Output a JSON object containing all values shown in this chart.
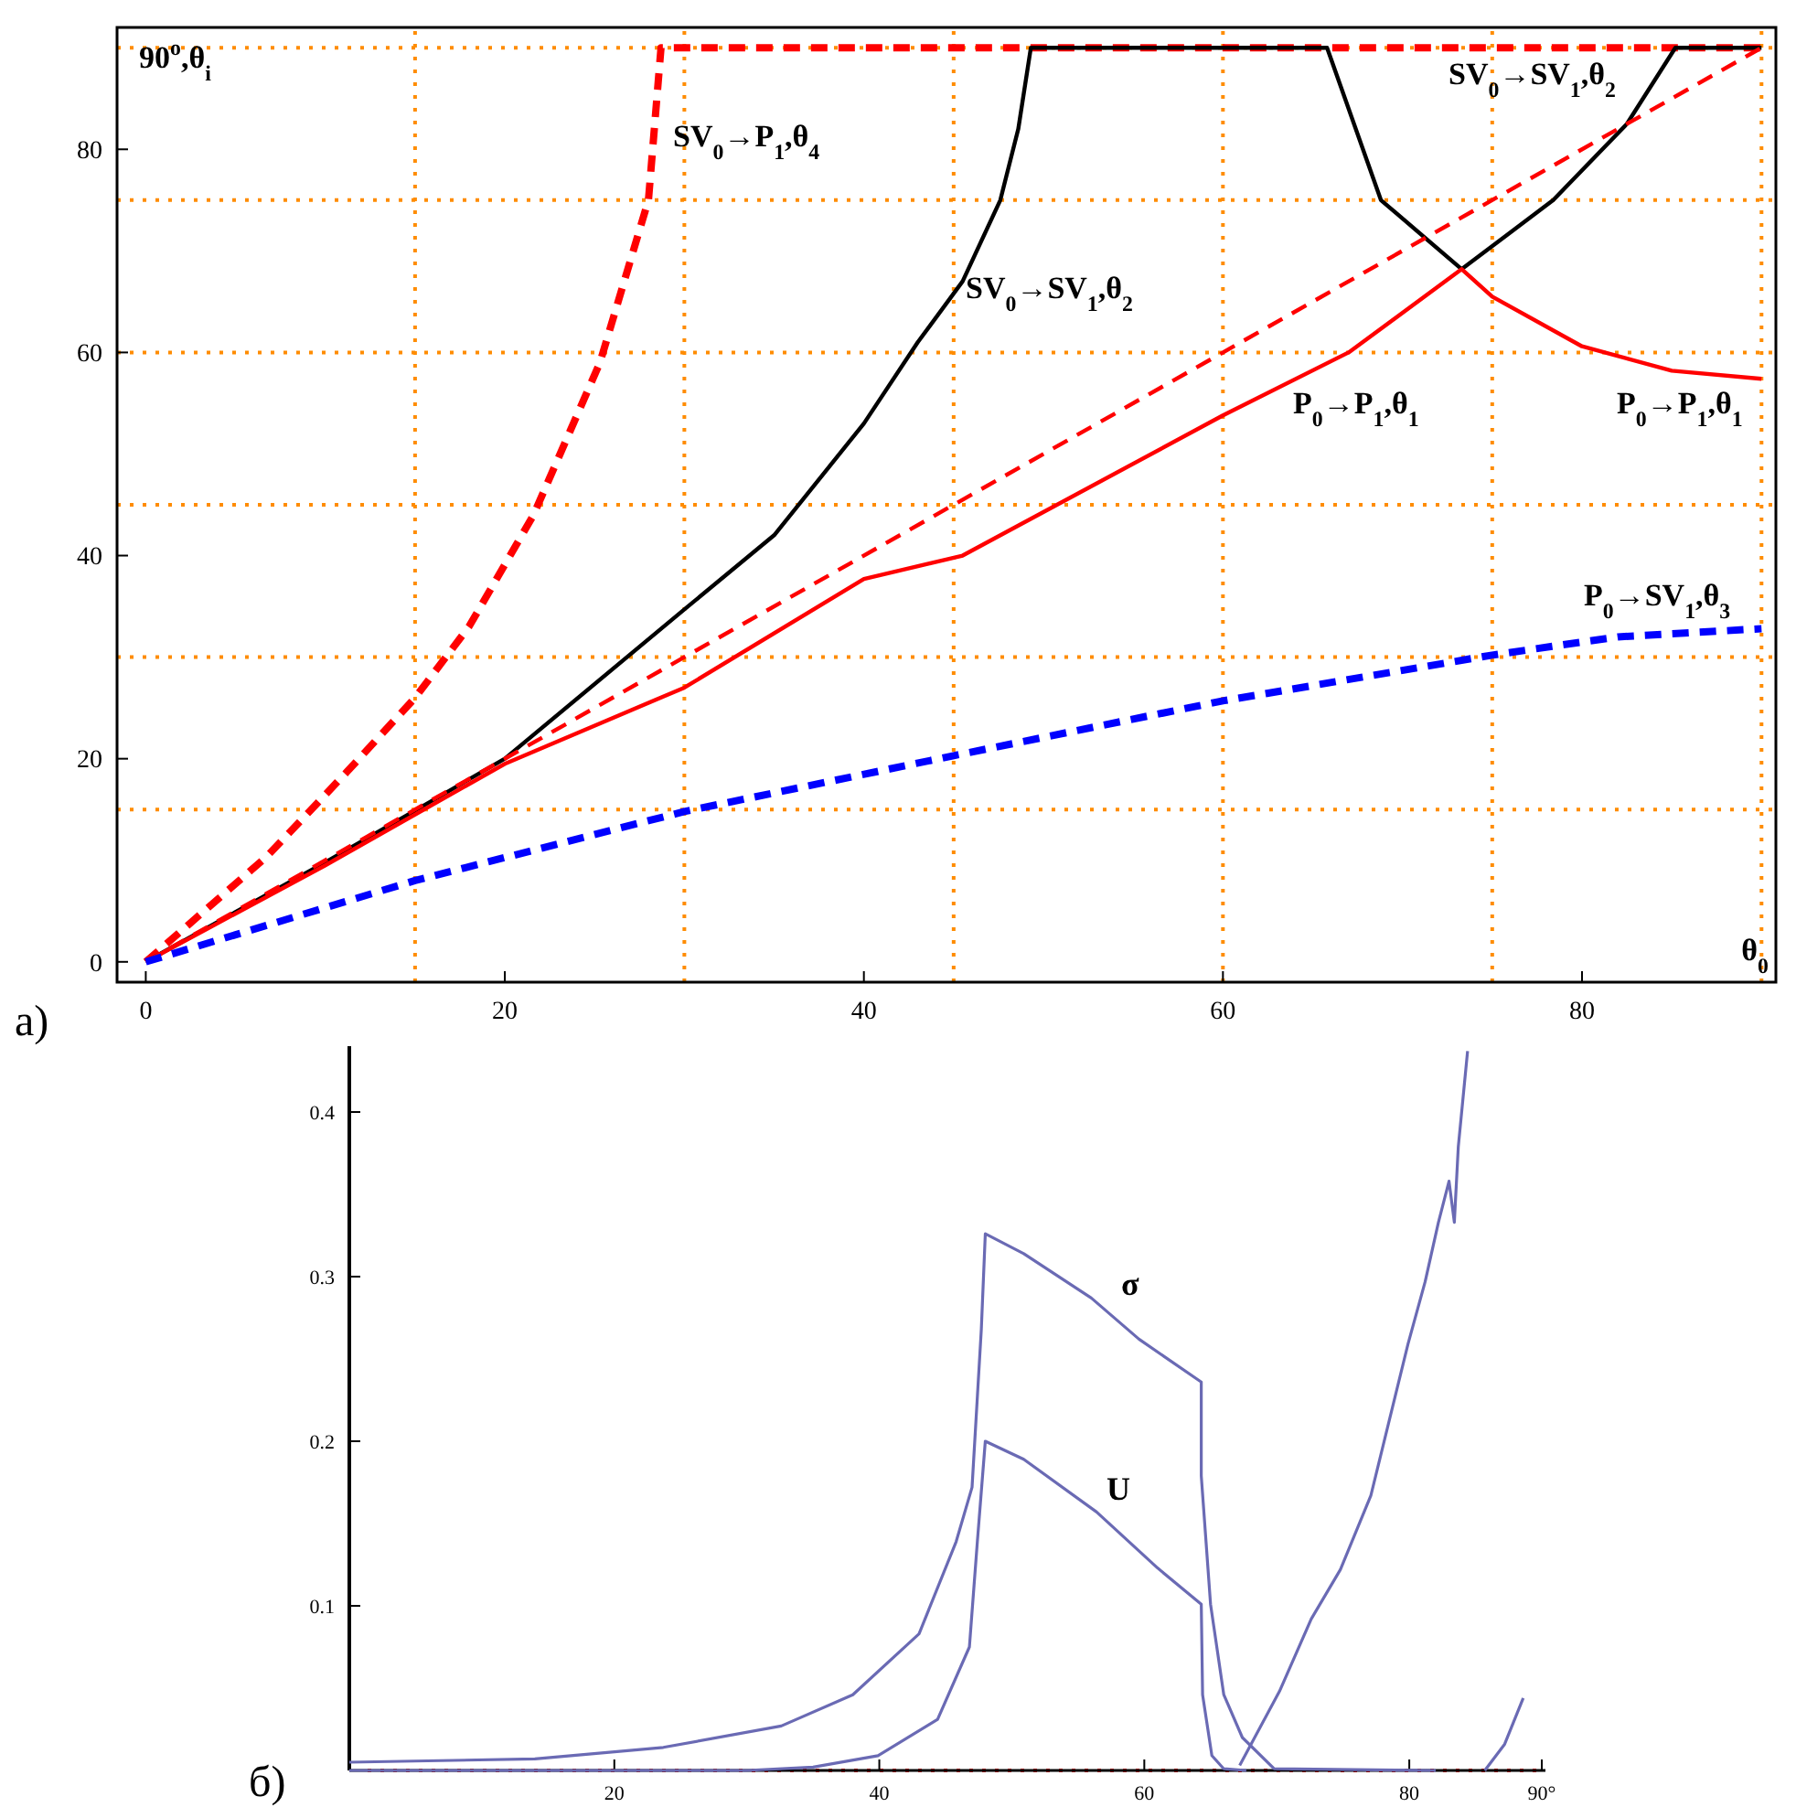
{
  "chart_data": [
    {
      "type": "line",
      "xlabel": "θ$_{0}$",
      "ylabel": "90$^{o}$,θ$_{i}$",
      "xlim": [
        -1.6,
        90.8
      ],
      "ylim": [
        -2,
        92
      ],
      "xticks": [
        0,
        20,
        40,
        60,
        80
      ],
      "yticks": [
        0,
        20,
        40,
        60,
        80
      ],
      "series": [
        {
          "color": "#ff0000",
          "line_style": "dashed",
          "x": [
            0,
            6.7,
            11.2,
            15,
            18,
            21.6,
            25.3,
            28,
            28.7,
            90
          ],
          "values": [
            0,
            10.3,
            18.7,
            26,
            33,
            44,
            59,
            75,
            90,
            90
          ]
        },
        {
          "color": "#000000",
          "line_style": "solid",
          "x": [
            0,
            10,
            20,
            30,
            35,
            40,
            43,
            45.5,
            47.6,
            48.6,
            49.3,
            65.8,
            68.8,
            73.3,
            78.4,
            82.5,
            85.2,
            90
          ],
          "values": [
            0,
            9.8,
            20,
            34.7,
            42,
            53,
            61,
            67,
            75,
            82,
            90,
            90,
            75,
            68.2,
            75,
            82.5,
            90,
            90
          ]
        },
        {
          "color": "#ff0000",
          "line_style": "solid",
          "x": [
            0,
            10,
            20,
            30,
            40,
            45.5,
            60,
            67,
            73.3,
            75,
            80,
            85,
            90
          ],
          "values": [
            0,
            9.5,
            19.5,
            27,
            37.7,
            40,
            53.8,
            60,
            68.2,
            65.5,
            60.6,
            58.2,
            57.4
          ]
        },
        {
          "color": "#ff0000",
          "line_style": "dashed",
          "x": [
            0,
            90
          ],
          "values": [
            0,
            90
          ]
        },
        {
          "color": "#0000ff",
          "line_style": "dashed",
          "x": [
            0,
            15,
            30,
            45,
            60,
            75,
            82,
            90
          ],
          "values": [
            0,
            8,
            14.8,
            20.3,
            25.7,
            30.2,
            32,
            32.8
          ]
        }
      ],
      "ref_lines": [
        {
          "axis": "x",
          "value": 15,
          "color": "#ff8c00",
          "line_style": "dotted"
        },
        {
          "axis": "x",
          "value": 30,
          "color": "#ff8c00",
          "line_style": "dotted"
        },
        {
          "axis": "x",
          "value": 45,
          "color": "#ff8c00",
          "line_style": "dotted"
        },
        {
          "axis": "x",
          "value": 60,
          "color": "#ff8c00",
          "line_style": "dotted"
        },
        {
          "axis": "x",
          "value": 75,
          "color": "#ff8c00",
          "line_style": "dotted"
        },
        {
          "axis": "x",
          "value": 90,
          "color": "#ff8c00",
          "line_style": "dotted"
        },
        {
          "axis": "y",
          "value": 15,
          "color": "#ff8c00",
          "line_style": "dotted"
        },
        {
          "axis": "y",
          "value": 30,
          "color": "#ff8c00",
          "line_style": "dotted"
        },
        {
          "axis": "y",
          "value": 45,
          "color": "#ff8c00",
          "line_style": "dotted"
        },
        {
          "axis": "y",
          "value": 60,
          "color": "#ff8c00",
          "line_style": "dotted"
        },
        {
          "axis": "y",
          "value": 75,
          "color": "#ff8c00",
          "line_style": "dotted"
        },
        {
          "axis": "y",
          "value": 90,
          "color": "#ff8c00",
          "line_style": "dotted"
        }
      ],
      "annotations": [
        "SV$_{0}$→P$_{1}$,θ$_{4}$",
        "SV$_{0}$→SV$_{1}$,θ$_{2}$",
        "SV$_{0}$→SV$_{1}$,θ$_{2}$",
        "P$_{0}$→P$_{1}$,θ$_{1}$",
        "P$_{0}$→P$_{1}$,θ$_{1}$",
        "P$_{0}$→SV$_{1}$,θ$_{3}$",
        "a)"
      ]
    },
    {
      "type": "line",
      "xlim": [
        0,
        90
      ],
      "ylim": [
        0,
        0.44
      ],
      "xticks": [
        20,
        40,
        60,
        80,
        {
          "value": 90,
          "label": "90°"
        }
      ],
      "yticks": [
        0.1,
        0.2,
        0.3,
        0.4
      ],
      "series": [
        {
          "color": "#6a6ab4",
          "line_style": "solid",
          "x": [
            0,
            14,
            23.7,
            32.6,
            38,
            43,
            45.8,
            47,
            47.7,
            48,
            50.9,
            56,
            59.6,
            64.3,
            64.3,
            65,
            66,
            67.4,
            69.8,
            82
          ],
          "values": [
            0.005,
            0.007,
            0.014,
            0.027,
            0.046,
            0.083,
            0.139,
            0.172,
            0.268,
            0.326,
            0.314,
            0.287,
            0.262,
            0.236,
            0.179,
            0.101,
            0.046,
            0.02,
            0.001,
            0
          ]
        },
        {
          "color": "#6a6ab4",
          "line_style": "solid",
          "x": [
            0,
            30,
            35,
            39.9,
            44.4,
            46.8,
            47.4,
            48,
            50.9,
            56.4,
            61,
            64.3,
            64.4,
            65.1,
            66,
            67.7
          ],
          "values": [
            0,
            0,
            0.002,
            0.009,
            0.031,
            0.075,
            0.139,
            0.2,
            0.189,
            0.157,
            0.123,
            0.101,
            0.046,
            0.009,
            0.001,
            0
          ]
        },
        {
          "color": "#6a6ab4",
          "line_style": "solid",
          "x": [
            67.2,
            70.2,
            72.6,
            74.8,
            77.1,
            79.9,
            81.2,
            82.2,
            83,
            83.4,
            83.7,
            84.4
          ],
          "values": [
            0.003,
            0.048,
            0.092,
            0.122,
            0.167,
            0.259,
            0.297,
            0.333,
            0.358,
            0.333,
            0.379,
            0.437
          ]
        },
        {
          "color": "#6a6ab4",
          "line_style": "solid",
          "x": [
            85.7,
            87.2,
            88.6
          ],
          "values": [
            0,
            0.016,
            0.044
          ]
        }
      ],
      "ref_lines": [
        {
          "axis": "y",
          "value": 0,
          "color": "#ff0000",
          "line_style": "dotted"
        }
      ],
      "annotations": [
        "σ",
        "U",
        "б)"
      ]
    }
  ]
}
